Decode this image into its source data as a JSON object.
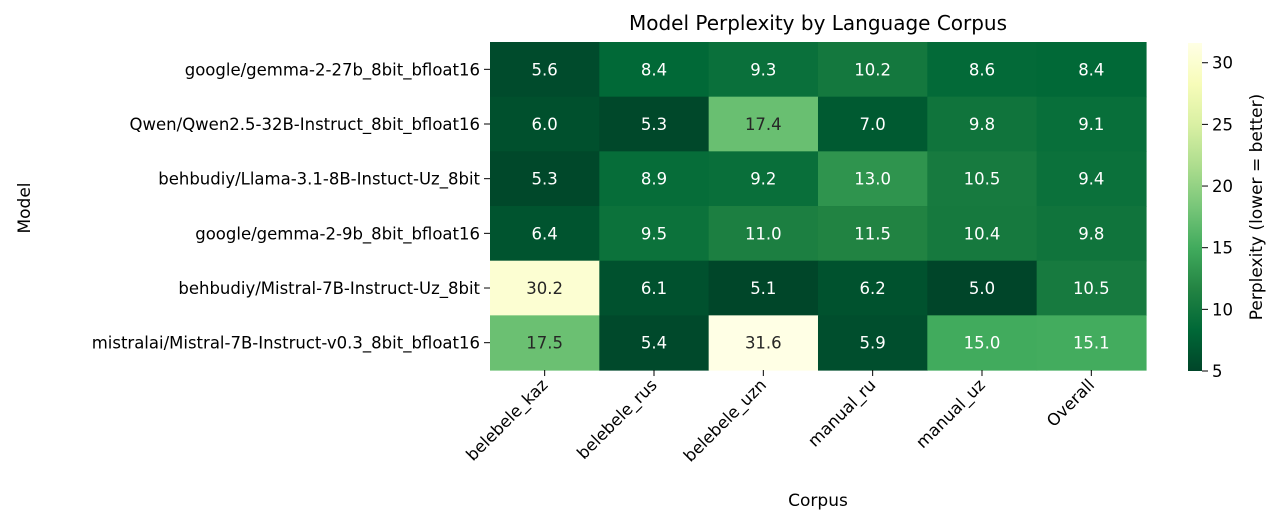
{
  "chart_data": {
    "type": "heatmap",
    "title": "Model Perplexity by Language Corpus",
    "xlabel": "Corpus",
    "ylabel": "Model",
    "x_categories": [
      "belebele_kaz",
      "belebele_rus",
      "belebele_uzn",
      "manual_ru",
      "manual_uz",
      "Overall"
    ],
    "y_categories": [
      "google/gemma-2-27b_8bit_bfloat16",
      "Qwen/Qwen2.5-32B-Instruct_8bit_bfloat16",
      "behbudiy/Llama-3.1-8B-Instuct-Uz_8bit",
      "google/gemma-2-9b_8bit_bfloat16",
      "behbudiy/Mistral-7B-Instruct-Uz_8bit",
      "mistralai/Mistral-7B-Instruct-v0.3_8bit_bfloat16"
    ],
    "values": [
      [
        5.6,
        8.4,
        9.3,
        10.2,
        8.6,
        8.4
      ],
      [
        6.0,
        5.3,
        17.4,
        7.0,
        9.8,
        9.1
      ],
      [
        5.3,
        8.9,
        9.2,
        13.0,
        10.5,
        9.4
      ],
      [
        6.4,
        9.5,
        11.0,
        11.5,
        10.4,
        9.8
      ],
      [
        30.2,
        6.1,
        5.1,
        6.2,
        5.0,
        10.5
      ],
      [
        17.5,
        5.4,
        31.6,
        5.9,
        15.0,
        15.1
      ]
    ],
    "colormap": "YlGn_r",
    "colorbar": {
      "label": "Perplexity (lower = better)",
      "min": 5.0,
      "max": 31.6,
      "ticks": [
        5,
        10,
        15,
        20,
        25,
        30
      ]
    },
    "annotation_format": "0.1f"
  }
}
